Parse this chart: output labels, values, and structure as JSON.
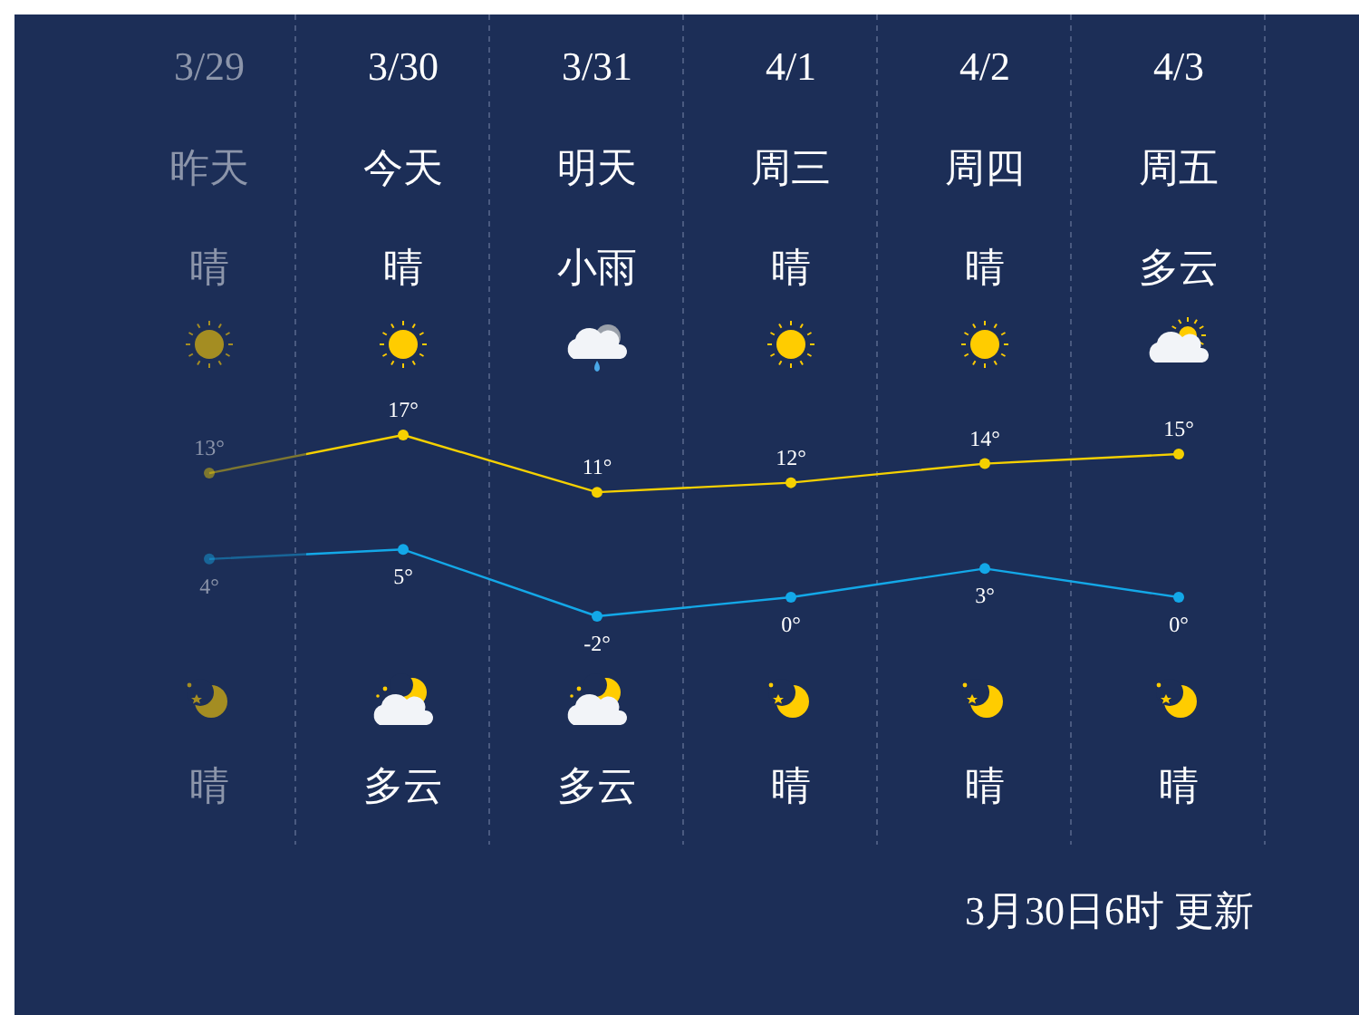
{
  "chart_data": {
    "type": "line",
    "categories": [
      "3/29",
      "3/30",
      "3/31",
      "4/1",
      "4/2",
      "4/3"
    ],
    "series": [
      {
        "color": "#f5d000",
        "values": [
          13,
          17,
          11,
          12,
          14,
          15
        ],
        "value_labels": [
          "13°",
          "17°",
          "11°",
          "12°",
          "14°",
          "15°"
        ]
      },
      {
        "color": "#13a8e8",
        "values": [
          4,
          5,
          -2,
          0,
          3,
          0
        ],
        "value_labels": [
          "4°",
          "5°",
          "-2°",
          "0°",
          "3°",
          "0°"
        ]
      }
    ],
    "marker": "circle",
    "grid": "x",
    "tick_labels": "x",
    "annotations": [
      "昨天",
      "今天",
      "明天",
      "周三",
      "周四",
      "周五",
      "晴",
      "晴",
      "小雨",
      "晴",
      "晴",
      "多云",
      "晴",
      "多云",
      "多云",
      "晴",
      "晴",
      "晴",
      "3月30日6时 更新"
    ]
  }
}
